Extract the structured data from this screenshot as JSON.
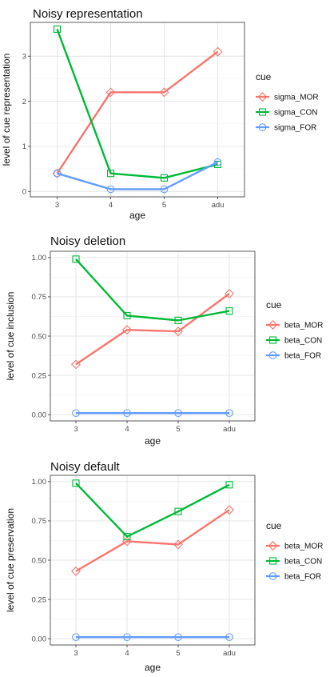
{
  "chart_data": [
    {
      "type": "line",
      "title": "Noisy representation",
      "xlabel": "age",
      "ylabel": "level of cue representation",
      "categories": [
        "3",
        "4",
        "5",
        "adu"
      ],
      "ylim": [
        -0.12,
        3.75
      ],
      "yticks": [
        0,
        1,
        2,
        3
      ],
      "ytick_labels": [
        "0",
        "1",
        "2",
        "3"
      ],
      "grid": true,
      "legend": {
        "title": "cue",
        "placement": "right"
      },
      "series": [
        {
          "name": "sigma_MOR",
          "color": "#F8766D",
          "marker": "diamond",
          "values": [
            0.4,
            2.2,
            2.2,
            3.1
          ]
        },
        {
          "name": "sigma_CON",
          "color": "#00BA38",
          "marker": "square",
          "values": [
            3.6,
            0.4,
            0.3,
            0.6
          ]
        },
        {
          "name": "sigma_FOR",
          "color": "#619CFF",
          "marker": "circle",
          "values": [
            0.4,
            0.05,
            0.05,
            0.65
          ]
        }
      ]
    },
    {
      "type": "line",
      "title": "Noisy deletion",
      "xlabel": "age",
      "ylabel": "level of cue inclusion",
      "categories": [
        "3",
        "4",
        "5",
        "adu"
      ],
      "ylim": [
        -0.04,
        1.04
      ],
      "yticks": [
        0,
        0.25,
        0.5,
        0.75,
        1
      ],
      "ytick_labels": [
        "0.00",
        "0.25",
        "0.50",
        "0.75",
        "1.00"
      ],
      "grid": true,
      "legend": {
        "title": "cue",
        "placement": "right"
      },
      "series": [
        {
          "name": "beta_MOR",
          "color": "#F8766D",
          "marker": "diamond",
          "values": [
            0.32,
            0.54,
            0.53,
            0.77
          ]
        },
        {
          "name": "beta_CON",
          "color": "#00BA38",
          "marker": "square",
          "values": [
            0.99,
            0.63,
            0.6,
            0.66
          ]
        },
        {
          "name": "beta_FOR",
          "color": "#619CFF",
          "marker": "circle",
          "values": [
            0.01,
            0.01,
            0.01,
            0.01
          ]
        }
      ]
    },
    {
      "type": "line",
      "title": "Noisy default",
      "xlabel": "age",
      "ylabel": "level of cue preservation",
      "categories": [
        "3",
        "4",
        "5",
        "adu"
      ],
      "ylim": [
        -0.04,
        1.04
      ],
      "yticks": [
        0,
        0.25,
        0.5,
        0.75,
        1
      ],
      "ytick_labels": [
        "0.00",
        "0.25",
        "0.50",
        "0.75",
        "1.00"
      ],
      "grid": true,
      "legend": {
        "title": "cue",
        "placement": "right"
      },
      "series": [
        {
          "name": "beta_MOR",
          "color": "#F8766D",
          "marker": "diamond",
          "values": [
            0.43,
            0.62,
            0.6,
            0.82
          ]
        },
        {
          "name": "beta_CON",
          "color": "#00BA38",
          "marker": "square",
          "values": [
            0.99,
            0.65,
            0.81,
            0.98
          ]
        },
        {
          "name": "beta_FOR",
          "color": "#619CFF",
          "marker": "circle",
          "values": [
            0.01,
            0.01,
            0.01,
            0.01
          ]
        }
      ]
    }
  ]
}
